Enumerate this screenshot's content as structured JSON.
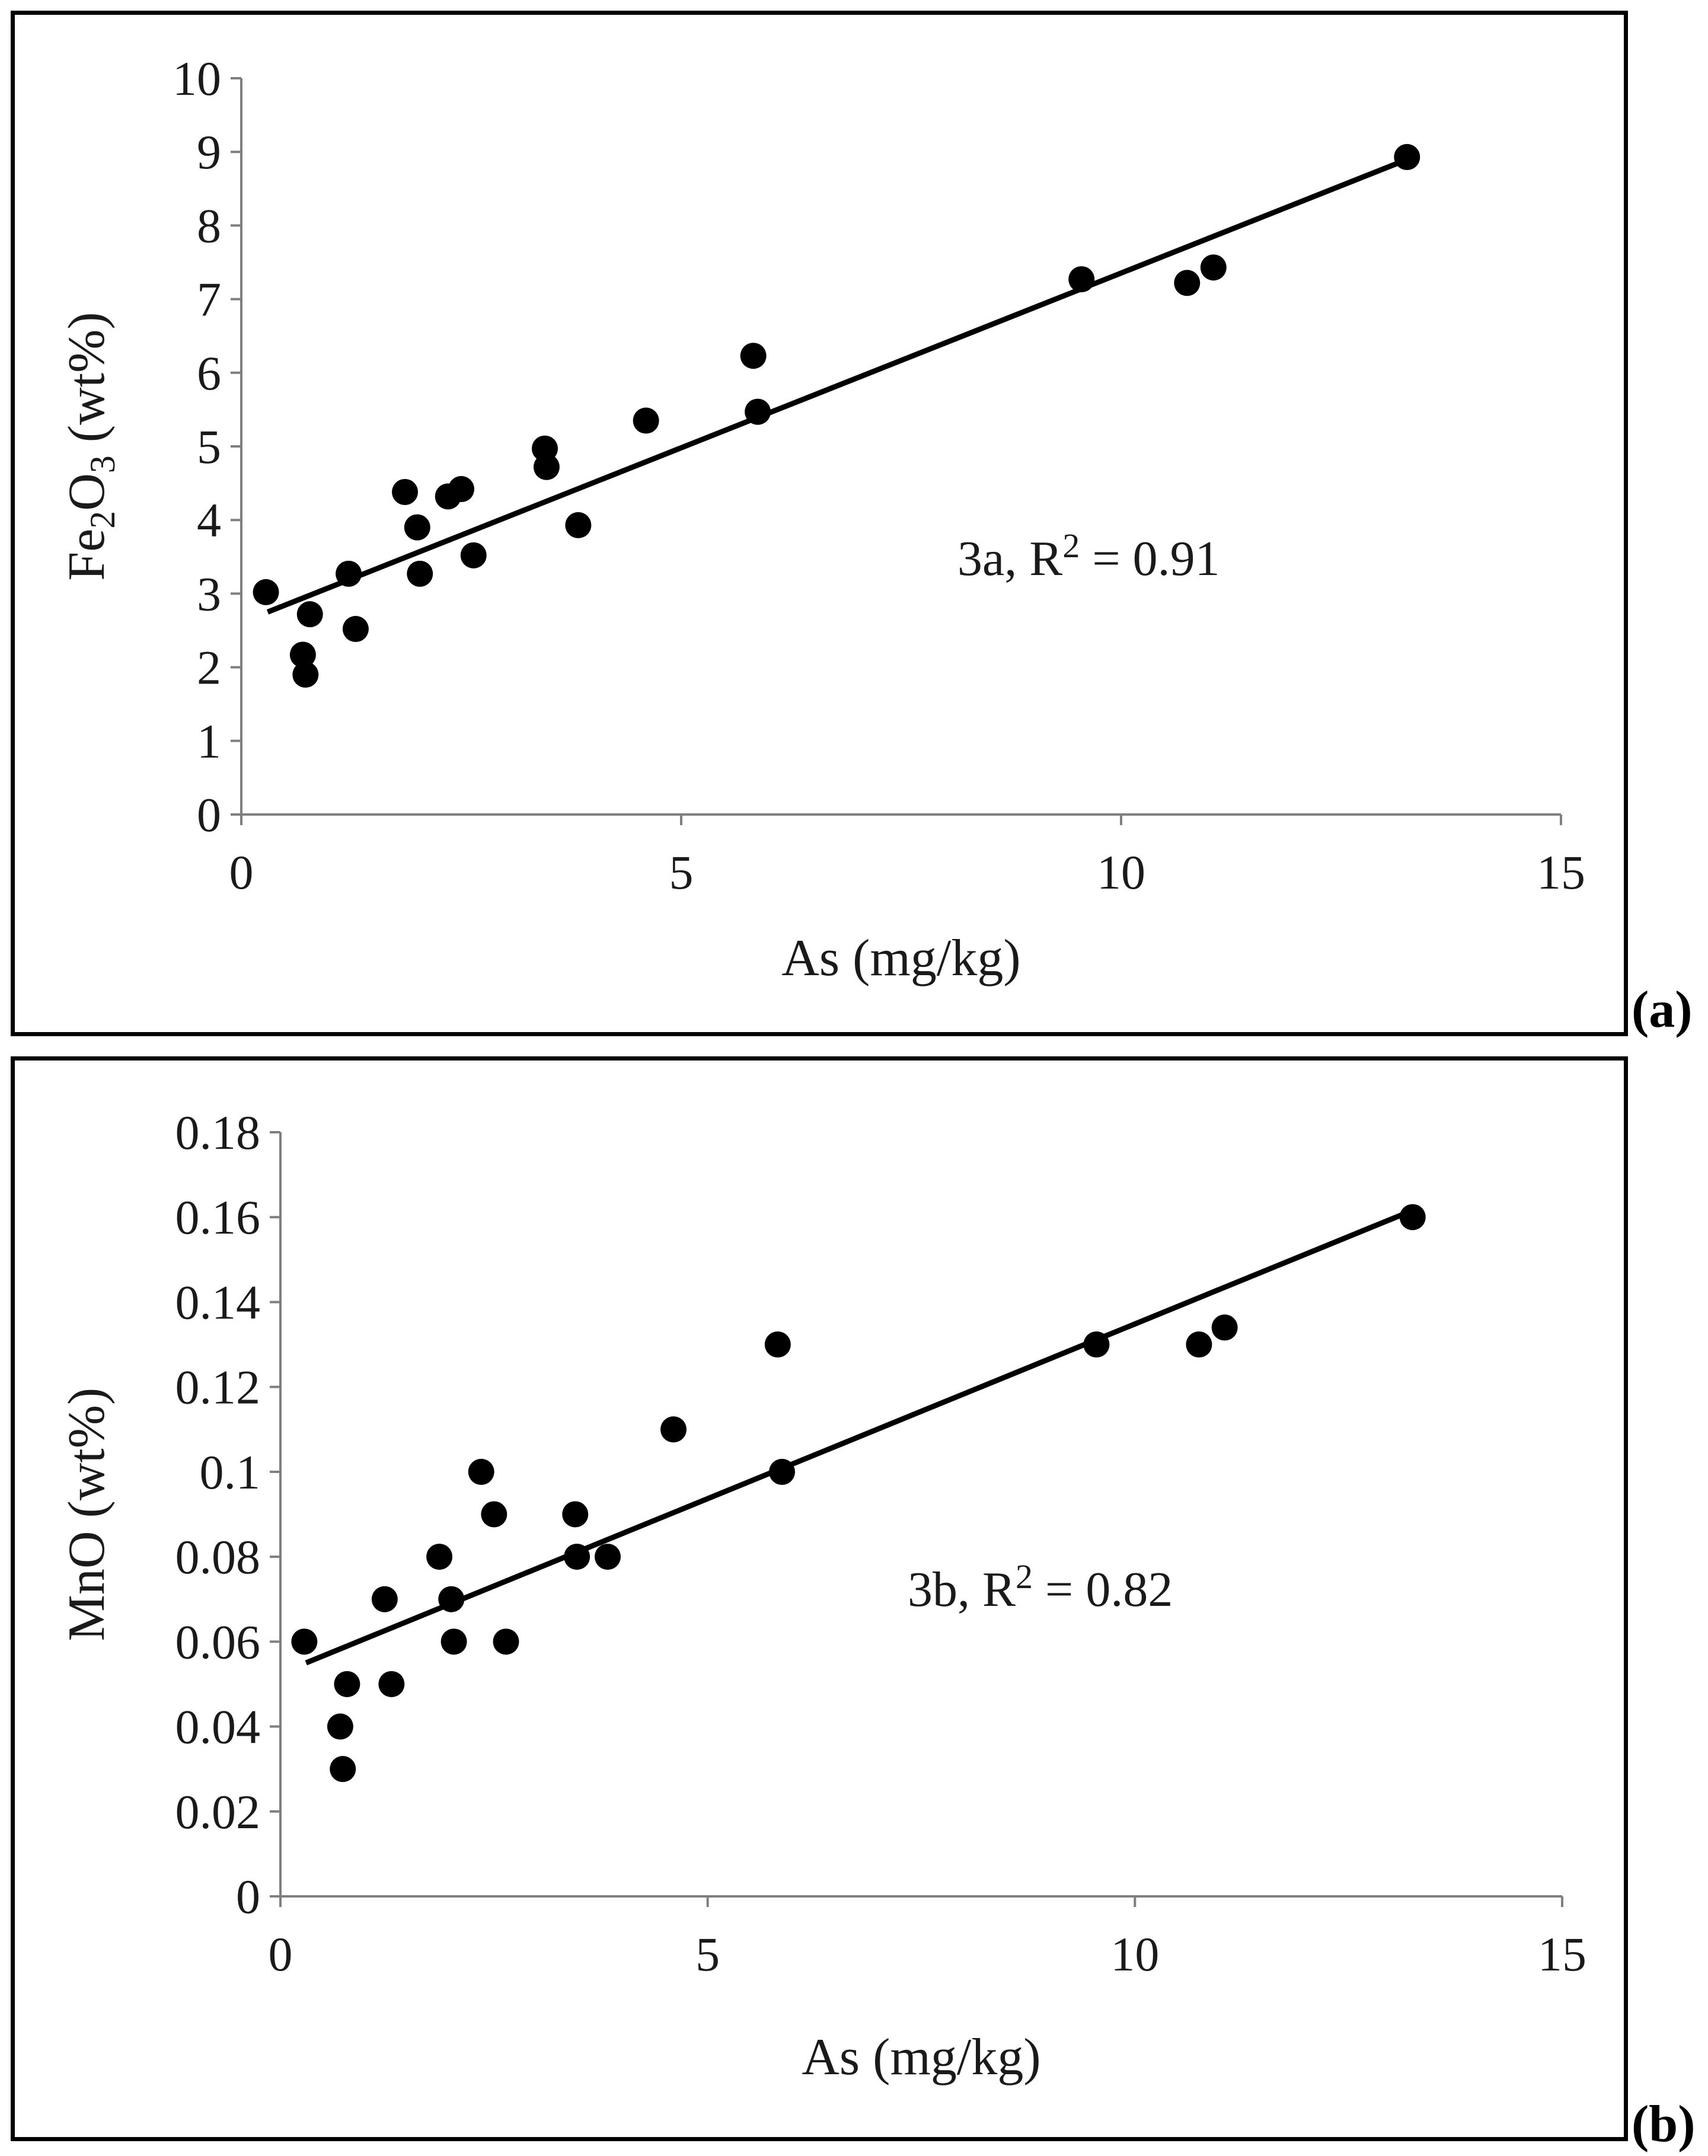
{
  "chart_data": [
    {
      "type": "scatter",
      "panel_label": "(a)",
      "xlabel": "As (mg/kg)",
      "ylabel_parts": [
        "Fe",
        "2",
        "O",
        "3",
        " (wt%)"
      ],
      "xlim": [
        0,
        15
      ],
      "ylim": [
        0,
        10
      ],
      "x_ticks": [
        0,
        5,
        10,
        15
      ],
      "y_ticks": [
        0,
        1,
        2,
        3,
        4,
        5,
        6,
        7,
        8,
        9,
        10
      ],
      "grid": false,
      "annotation": {
        "prefix": "3a, R",
        "sup": "2",
        "suffix": " = 0.91"
      },
      "trendline": {
        "x": [
          0.3,
          13.3
        ],
        "y": [
          2.75,
          8.92
        ]
      },
      "points": [
        {
          "x": 0.28,
          "y": 3.02
        },
        {
          "x": 0.7,
          "y": 2.17
        },
        {
          "x": 0.73,
          "y": 1.9
        },
        {
          "x": 0.78,
          "y": 2.72
        },
        {
          "x": 1.22,
          "y": 3.27
        },
        {
          "x": 1.3,
          "y": 2.52
        },
        {
          "x": 1.86,
          "y": 4.38
        },
        {
          "x": 2.0,
          "y": 3.9
        },
        {
          "x": 2.03,
          "y": 3.27
        },
        {
          "x": 2.35,
          "y": 4.32
        },
        {
          "x": 2.5,
          "y": 4.42
        },
        {
          "x": 2.64,
          "y": 3.52
        },
        {
          "x": 3.45,
          "y": 4.97
        },
        {
          "x": 3.47,
          "y": 4.72
        },
        {
          "x": 3.83,
          "y": 3.93
        },
        {
          "x": 4.6,
          "y": 5.35
        },
        {
          "x": 5.82,
          "y": 6.23
        },
        {
          "x": 5.87,
          "y": 5.47
        },
        {
          "x": 9.55,
          "y": 7.27
        },
        {
          "x": 10.75,
          "y": 7.22
        },
        {
          "x": 11.05,
          "y": 7.43
        },
        {
          "x": 13.25,
          "y": 8.93
        }
      ]
    },
    {
      "type": "scatter",
      "panel_label": "(b)",
      "xlabel": "As (mg/kg)",
      "ylabel_parts": [
        "MnO (wt%)"
      ],
      "xlim": [
        0,
        15
      ],
      "ylim": [
        0,
        0.18
      ],
      "x_ticks": [
        0,
        5,
        10,
        15
      ],
      "y_ticks": [
        0,
        0.02,
        0.04,
        0.06,
        0.08,
        0.1,
        0.12,
        0.14,
        0.16,
        0.18
      ],
      "grid": false,
      "annotation": {
        "prefix": "3b, R",
        "sup": "2",
        "suffix": " = 0.82"
      },
      "trendline": {
        "x": [
          0.3,
          13.3
        ],
        "y": [
          0.055,
          0.162
        ]
      },
      "points": [
        {
          "x": 0.28,
          "y": 0.06
        },
        {
          "x": 0.7,
          "y": 0.04
        },
        {
          "x": 0.73,
          "y": 0.03
        },
        {
          "x": 0.78,
          "y": 0.05
        },
        {
          "x": 1.22,
          "y": 0.07
        },
        {
          "x": 1.3,
          "y": 0.05
        },
        {
          "x": 1.86,
          "y": 0.08
        },
        {
          "x": 2.0,
          "y": 0.07
        },
        {
          "x": 2.03,
          "y": 0.06
        },
        {
          "x": 2.35,
          "y": 0.1
        },
        {
          "x": 2.5,
          "y": 0.09
        },
        {
          "x": 2.64,
          "y": 0.06
        },
        {
          "x": 3.45,
          "y": 0.09
        },
        {
          "x": 3.47,
          "y": 0.08
        },
        {
          "x": 3.83,
          "y": 0.08
        },
        {
          "x": 4.6,
          "y": 0.11
        },
        {
          "x": 5.82,
          "y": 0.13
        },
        {
          "x": 5.87,
          "y": 0.1
        },
        {
          "x": 9.55,
          "y": 0.13
        },
        {
          "x": 10.75,
          "y": 0.13
        },
        {
          "x": 11.05,
          "y": 0.134
        },
        {
          "x": 13.25,
          "y": 0.16
        }
      ]
    }
  ]
}
